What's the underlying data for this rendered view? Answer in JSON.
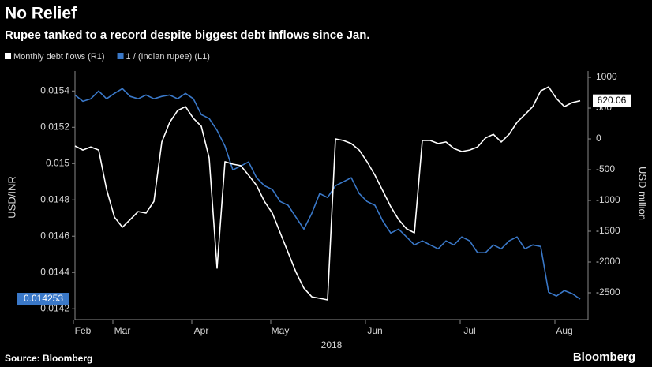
{
  "chart_data": {
    "type": "line",
    "title": "No Relief",
    "subtitle": "Rupee tanked to a record despite biggest debt inflows since Jan.",
    "xlabel": "2018",
    "ylabel": "USD/INR",
    "y2label": "USD million",
    "categories": [
      null,
      "Feb",
      null,
      null,
      null,
      null,
      "Mar",
      null,
      null,
      null,
      null,
      null,
      null,
      null,
      null,
      null,
      "Apr",
      null,
      null,
      null,
      null,
      null,
      null,
      null,
      null,
      null,
      "May",
      null,
      null,
      null,
      null,
      null,
      null,
      null,
      null,
      null,
      null,
      null,
      "Jun",
      null,
      null,
      null,
      null,
      null,
      null,
      null,
      null,
      null,
      null,
      null,
      "Jul",
      null,
      null,
      null,
      null,
      null,
      null,
      null,
      null,
      null,
      null,
      null,
      "Aug",
      null,
      null
    ],
    "series": [
      {
        "name": "Monthly debt flows (R1)",
        "color": "#ffffff",
        "axis": "y2",
        "values": [
          -115,
          -180,
          -130,
          -180,
          -820,
          -1270,
          -1435,
          -1310,
          -1180,
          -1205,
          -1015,
          -50,
          270,
          460,
          525,
          335,
          205,
          -310,
          -2100,
          -370,
          -410,
          -435,
          -590,
          -755,
          -1015,
          -1205,
          -1525,
          -1845,
          -2165,
          -2425,
          -2565,
          -2590,
          -2615,
          0,
          -25,
          -75,
          -180,
          -370,
          -590,
          -845,
          -1100,
          -1310,
          -1460,
          -1525,
          -25,
          -25,
          -75,
          -50,
          -155,
          -205,
          -180,
          -130,
          15,
          75,
          -50,
          75,
          270,
          395,
          525,
          780,
          845,
          655,
          525,
          590,
          620.06
        ]
      },
      {
        "name": "1 / (Indian rupee) (L1)",
        "color": "#3a78c8",
        "values": [
          0.015378,
          0.015343,
          0.015357,
          0.0154,
          0.015357,
          0.015387,
          0.015413,
          0.01537,
          0.015357,
          0.015378,
          0.015357,
          0.01537,
          0.015378,
          0.015357,
          0.015387,
          0.015357,
          0.01527,
          0.015248,
          0.015183,
          0.015096,
          0.014965,
          0.014987,
          0.015009,
          0.014922,
          0.014878,
          0.014857,
          0.014791,
          0.01477,
          0.014704,
          0.014639,
          0.014726,
          0.014835,
          0.014813,
          0.014878,
          0.0149,
          0.014922,
          0.014835,
          0.014791,
          0.01477,
          0.014683,
          0.014617,
          0.014639,
          0.014596,
          0.014552,
          0.014574,
          0.014552,
          0.01453,
          0.014574,
          0.014552,
          0.014596,
          0.014574,
          0.014509,
          0.014509,
          0.014552,
          0.01453,
          0.014574,
          0.014596,
          0.01453,
          0.014552,
          0.014543,
          0.014291,
          0.01427,
          0.0143,
          0.014283,
          0.014253
        ]
      }
    ],
    "ylim": [
      0.01414,
      0.01551
    ],
    "yticks": [
      0.0142,
      0.0144,
      0.0146,
      0.0148,
      0.015,
      0.0152,
      0.0154
    ],
    "y2lim": [
      -2936,
      1103
    ],
    "y2ticks": [
      -2500,
      -2000,
      -1500,
      -1000,
      -500,
      0,
      500,
      1000
    ],
    "grid": false,
    "legend": "top-left"
  },
  "source": "Source: Bloomberg",
  "brand": "Bloomberg"
}
